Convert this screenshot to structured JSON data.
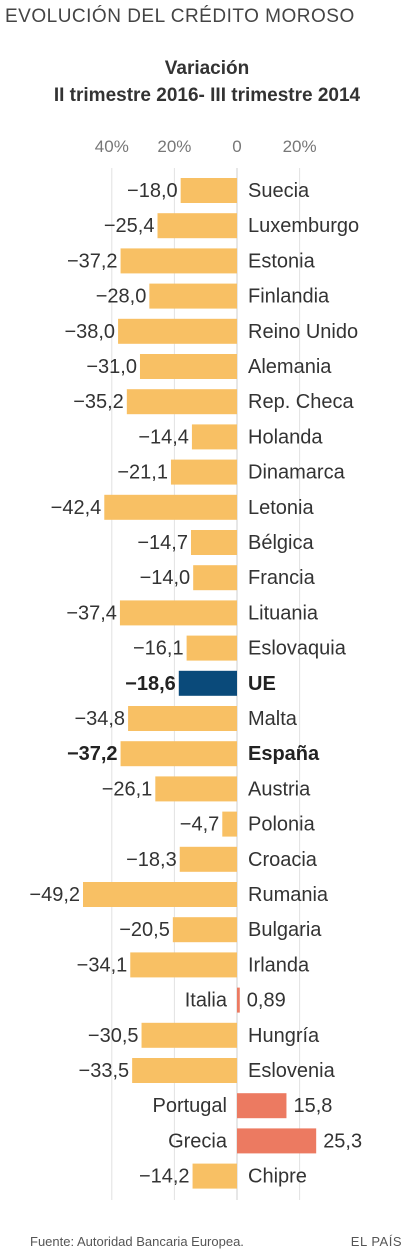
{
  "chart_data": {
    "type": "bar",
    "orientation": "horizontal",
    "title": "EVOLUCIÓN DEL CRÉDITO MOROSO",
    "subtitle": [
      "Variación",
      "II trimestre 2016- III trimestre 2014"
    ],
    "x_tick_labels": [
      "40%",
      "20%",
      "0",
      "20%"
    ],
    "x_ticks": [
      -40,
      -20,
      0,
      20
    ],
    "xlim": [
      -50,
      32
    ],
    "grid": true,
    "colors": {
      "negative": "#F8C064",
      "highlight": "#0A4A7A",
      "positive": "#EC7A61"
    },
    "bars": [
      {
        "category": "Suecia",
        "value": -18.0,
        "label": "−18,0"
      },
      {
        "category": "Luxemburgo",
        "value": -25.4,
        "label": "−25,4"
      },
      {
        "category": "Estonia",
        "value": -37.2,
        "label": "−37,2"
      },
      {
        "category": "Finlandia",
        "value": -28.0,
        "label": "−28,0"
      },
      {
        "category": "Reino Unido",
        "value": -38.0,
        "label": "−38,0"
      },
      {
        "category": "Alemania",
        "value": -31.0,
        "label": "−31,0"
      },
      {
        "category": "Rep. Checa",
        "value": -35.2,
        "label": "−35,2"
      },
      {
        "category": "Holanda",
        "value": -14.4,
        "label": "−14,4"
      },
      {
        "category": "Dinamarca",
        "value": -21.1,
        "label": "−21,1"
      },
      {
        "category": "Letonia",
        "value": -42.4,
        "label": "−42,4"
      },
      {
        "category": "Bélgica",
        "value": -14.7,
        "label": "−14,7"
      },
      {
        "category": "Francia",
        "value": -14.0,
        "label": "−14,0"
      },
      {
        "category": "Lituania",
        "value": -37.4,
        "label": "−37,4"
      },
      {
        "category": "Eslovaquia",
        "value": -16.1,
        "label": "−16,1"
      },
      {
        "category": "UE",
        "value": -18.6,
        "label": "−18,6",
        "highlight": true,
        "bold": true
      },
      {
        "category": "Malta",
        "value": -34.8,
        "label": "−34,8"
      },
      {
        "category": "España",
        "value": -37.2,
        "label": "−37,2",
        "bold": true
      },
      {
        "category": "Austria",
        "value": -26.1,
        "label": "−26,1"
      },
      {
        "category": "Polonia",
        "value": -4.7,
        "label": "−4,7"
      },
      {
        "category": "Croacia",
        "value": -18.3,
        "label": "−18,3"
      },
      {
        "category": "Rumania",
        "value": -49.2,
        "label": "−49,2"
      },
      {
        "category": "Bulgaria",
        "value": -20.5,
        "label": "−20,5"
      },
      {
        "category": "Irlanda",
        "value": -34.1,
        "label": "−34,1"
      },
      {
        "category": "Italia",
        "value": 0.89,
        "label": "0,89"
      },
      {
        "category": "Hungría",
        "value": -30.5,
        "label": "−30,5"
      },
      {
        "category": "Eslovenia",
        "value": -33.5,
        "label": "−33,5"
      },
      {
        "category": "Portugal",
        "value": 15.8,
        "label": "15,8"
      },
      {
        "category": "Grecia",
        "value": 25.3,
        "label": "25,3"
      },
      {
        "category": "Chipre",
        "value": -14.2,
        "label": "−14,2"
      }
    ]
  },
  "footer": {
    "source": "Fuente: Autoridad Bancaria Europea.",
    "brand": "EL PAÍS"
  }
}
